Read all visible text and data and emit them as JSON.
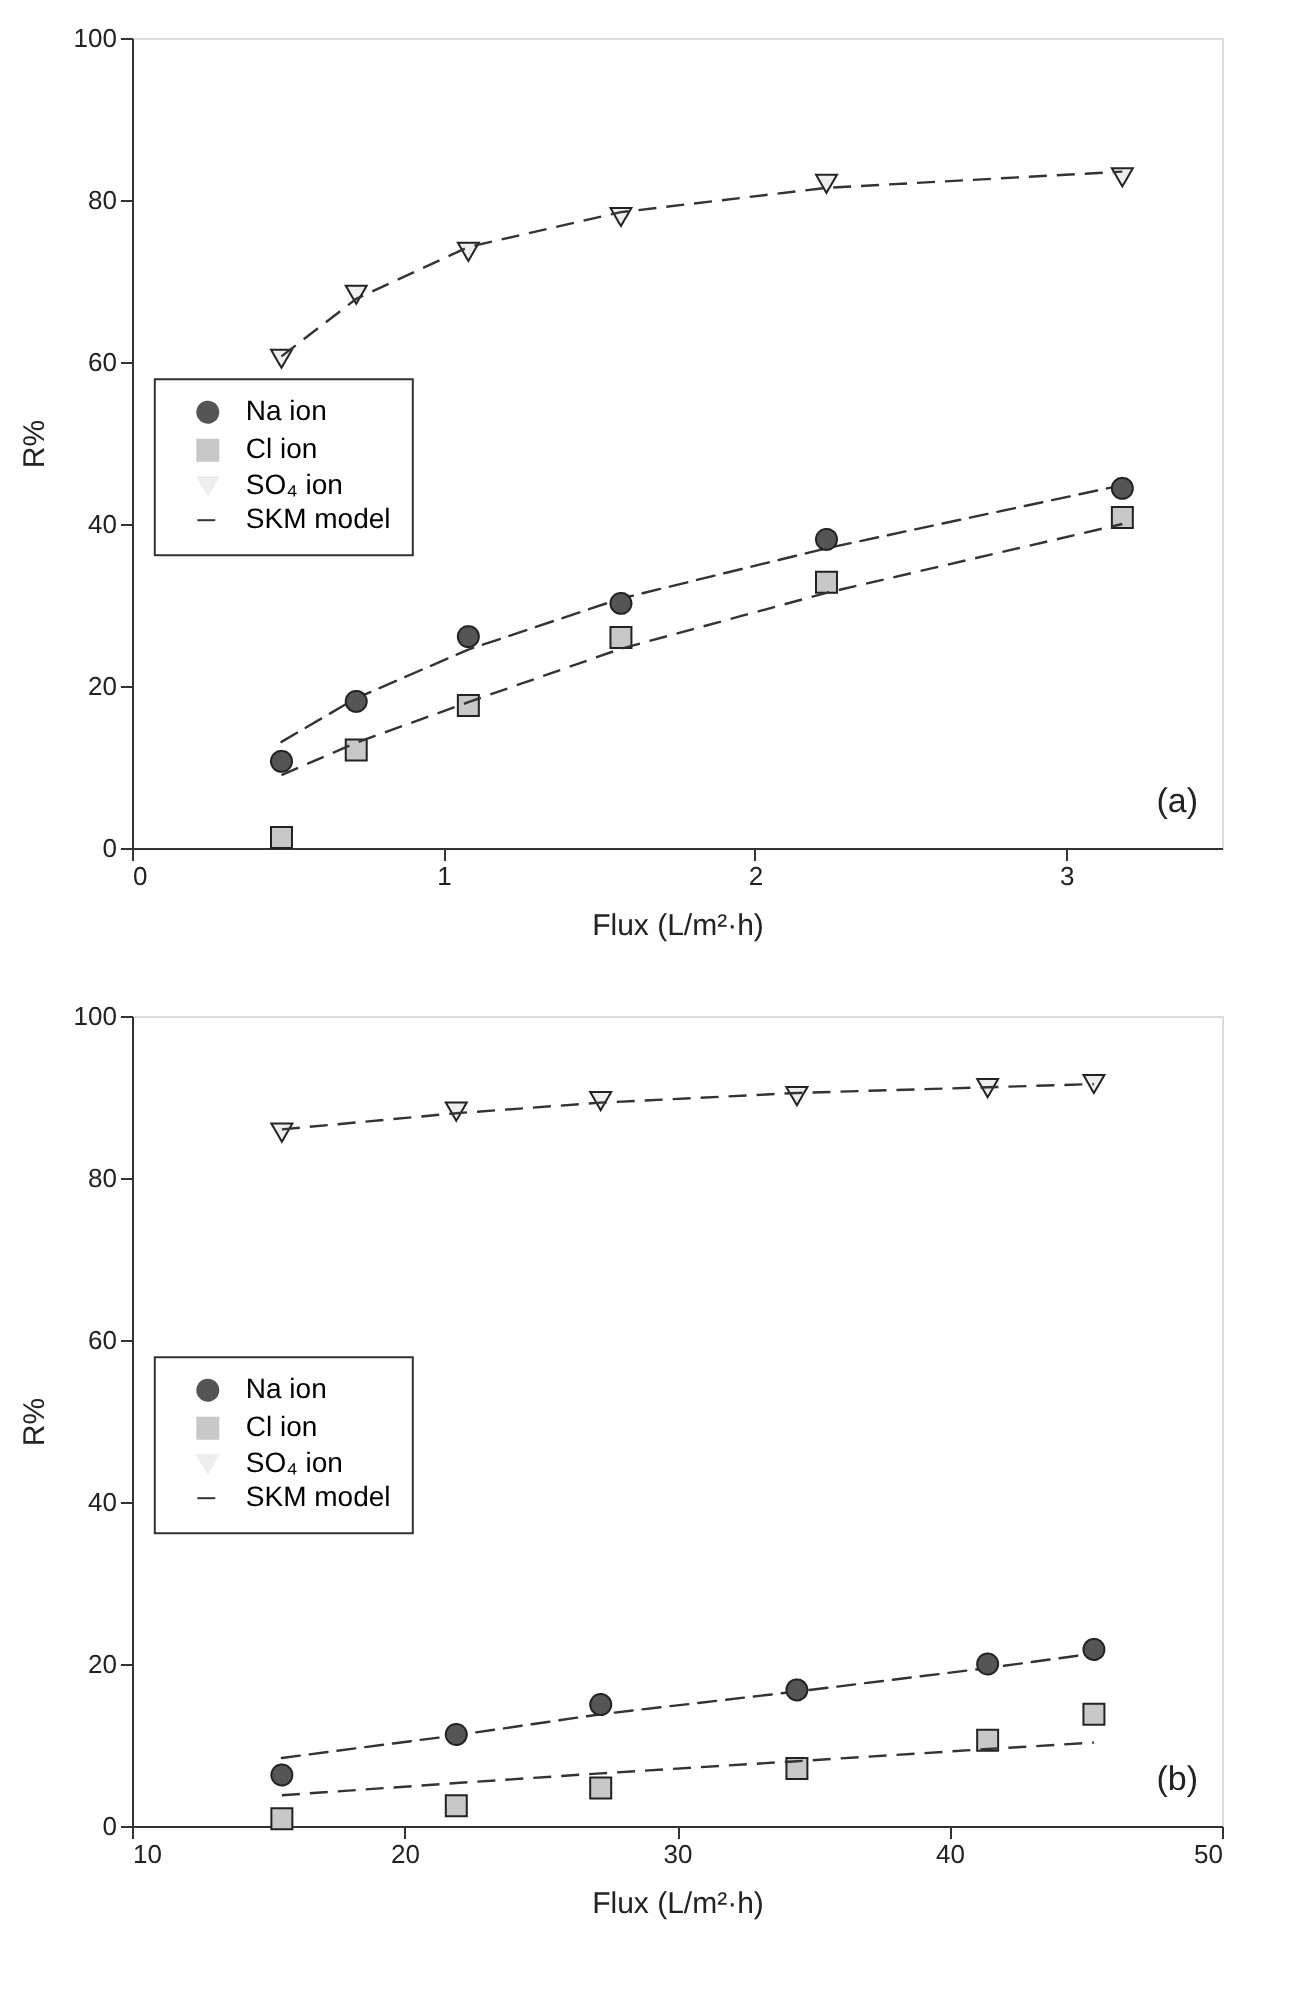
{
  "chart_data": [
    {
      "type": "scatter",
      "xlabel": "Flux (L/m²·h)",
      "ylabel": "R%",
      "xlim": [
        0,
        3.5
      ],
      "xticks": [
        0,
        1,
        2,
        3
      ],
      "ylim": [
        0,
        100
      ],
      "yticks": [
        0,
        20,
        40,
        60,
        80,
        100
      ],
      "grid": false,
      "legend": "left",
      "annotations": [
        "(a)"
      ],
      "x": [
        0.48,
        0.72,
        1.08,
        1.57,
        2.23,
        3.18
      ],
      "series": [
        {
          "name": "Na ion",
          "color": "#555555",
          "marker": "circle",
          "values": [
            10.7,
            18.1,
            26.1,
            30.2,
            38.1,
            44.4
          ]
        },
        {
          "name": "Cl ion",
          "color": "#c8c8c8",
          "marker": "square",
          "values": [
            1.3,
            12.1,
            17.6,
            26.0,
            32.8,
            40.8
          ]
        },
        {
          "name": "SO₄ ion",
          "color": "#eeeeee",
          "marker": "triangle",
          "values": [
            60.4,
            68.3,
            73.6,
            77.9,
            82.0,
            82.8
          ]
        },
        {
          "name": "SKM model",
          "type": "line",
          "color": "#333333",
          "marker": "none",
          "line_style": "dashed",
          "values": [
            13.1,
            18.5,
            24.5,
            30.8,
            37.0,
            44.8
          ]
        },
        {
          "type": "line",
          "color": "#333333",
          "marker": "none",
          "line_style": "dashed",
          "values": [
            9.0,
            13.0,
            18.0,
            24.6,
            31.5,
            40.0
          ]
        },
        {
          "type": "line",
          "color": "#333333",
          "marker": "none",
          "line_style": "dashed",
          "values": [
            60.7,
            67.8,
            74.2,
            78.5,
            81.5,
            83.5
          ]
        }
      ]
    },
    {
      "type": "scatter",
      "xlabel": "Flux (L/m²·h)",
      "ylabel": "R%",
      "xlim": [
        10,
        50
      ],
      "xticks": [
        10,
        20,
        30,
        40,
        50
      ],
      "ylim": [
        0,
        100
      ],
      "yticks": [
        0,
        20,
        40,
        60,
        80,
        100
      ],
      "grid": false,
      "legend": "left",
      "annotations": [
        "(b)"
      ],
      "x": [
        15.5,
        21.9,
        27.2,
        34.4,
        41.4,
        45.3
      ],
      "series": [
        {
          "name": "Na ion",
          "color": "#555555",
          "marker": "circle",
          "values": [
            6.3,
            11.3,
            15.0,
            16.8,
            20.0,
            21.8
          ]
        },
        {
          "name": "Cl ion",
          "color": "#c8c8c8",
          "marker": "square",
          "values": [
            0.9,
            2.5,
            4.7,
            7.1,
            10.6,
            13.8
          ]
        },
        {
          "name": "SO₄ ion",
          "color": "#eeeeee",
          "marker": "triangle",
          "values": [
            85.6,
            88.2,
            89.5,
            90.1,
            91.1,
            91.6
          ]
        },
        {
          "name": "SKM model",
          "type": "line",
          "color": "#333333",
          "marker": "none",
          "line_style": "dashed",
          "values": [
            8.4,
            11.2,
            13.8,
            16.6,
            19.5,
            21.3
          ]
        },
        {
          "type": "line",
          "color": "#333333",
          "marker": "none",
          "line_style": "dashed",
          "values": [
            3.8,
            5.3,
            6.5,
            8.0,
            9.5,
            10.3
          ]
        },
        {
          "type": "line",
          "color": "#333333",
          "marker": "none",
          "line_style": "dashed",
          "values": [
            86.0,
            88.0,
            89.3,
            90.5,
            91.2,
            91.6
          ]
        }
      ]
    }
  ]
}
